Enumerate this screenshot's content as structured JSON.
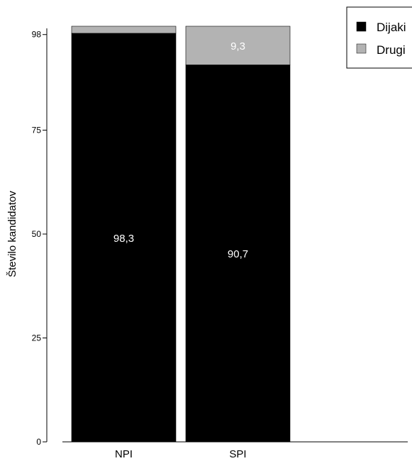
{
  "chart_data": {
    "type": "bar",
    "stacked": true,
    "categories": [
      "NPI",
      "SPI"
    ],
    "series": [
      {
        "name": "Dijaki",
        "values": [
          98.3,
          90.7
        ],
        "labels": [
          "98,3",
          "90,7"
        ],
        "color": "#000000"
      },
      {
        "name": "Drugi",
        "values": [
          1.7,
          9.3
        ],
        "labels": [
          "",
          "9,3"
        ],
        "color": "#b3b3b3"
      }
    ],
    "ylabel": "Število kandidatov",
    "xlabel": "",
    "title": "",
    "ylim": [
      0,
      100
    ],
    "yticks": [
      0,
      25,
      50,
      75,
      98
    ],
    "ytick_labels": [
      "0",
      "25",
      "50",
      "75",
      "98"
    ],
    "grid": false,
    "legend_position": "top-right"
  }
}
